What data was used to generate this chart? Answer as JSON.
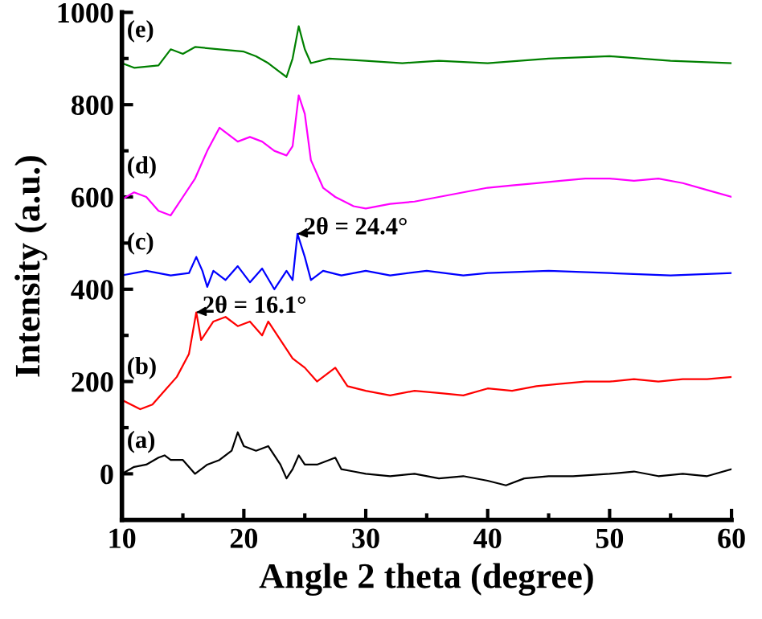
{
  "chart_data": {
    "type": "line",
    "xlabel": "Angle 2 theta (degree)",
    "ylabel": "Intensity (a.u.)",
    "xlim": [
      10,
      60
    ],
    "xticks": [
      10,
      20,
      30,
      40,
      50,
      60
    ],
    "ylim": [
      -100,
      1000
    ],
    "yticks": [
      0,
      200,
      400,
      600,
      800,
      1000
    ],
    "series": [
      {
        "name": "(a)",
        "color": "#000000",
        "x": [
          10,
          11,
          12,
          13,
          13.5,
          14,
          15,
          16,
          17,
          18,
          19,
          19.5,
          20,
          21,
          22,
          22.5,
          23,
          23.5,
          24,
          24.5,
          25,
          26,
          27,
          27.5,
          28,
          29,
          30,
          32,
          34,
          36,
          38,
          40,
          41.5,
          43,
          45,
          47,
          50,
          52,
          54,
          56,
          58,
          60
        ],
        "values": [
          0,
          15,
          20,
          35,
          40,
          30,
          30,
          0,
          20,
          30,
          50,
          90,
          60,
          50,
          60,
          40,
          20,
          -10,
          10,
          40,
          20,
          20,
          30,
          35,
          10,
          5,
          0,
          -5,
          0,
          -10,
          -5,
          -15,
          -25,
          -10,
          -5,
          -5,
          0,
          5,
          -5,
          0,
          -5,
          10
        ]
      },
      {
        "name": "(b)",
        "color": "#ff0000",
        "x": [
          10,
          11.5,
          12.5,
          13.5,
          14.5,
          15.5,
          16.1,
          16.5,
          17.5,
          18.5,
          19.5,
          20.5,
          21.5,
          22,
          23,
          24,
          25,
          26,
          27.5,
          28.5,
          30,
          32,
          34,
          36,
          38,
          40,
          42,
          44,
          46,
          48,
          50,
          52,
          54,
          56,
          58,
          60
        ],
        "values": [
          160,
          140,
          150,
          180,
          210,
          260,
          350,
          290,
          330,
          340,
          320,
          330,
          300,
          330,
          290,
          250,
          230,
          200,
          230,
          190,
          180,
          170,
          180,
          175,
          170,
          185,
          180,
          190,
          195,
          200,
          200,
          205,
          200,
          205,
          205,
          210
        ]
      },
      {
        "name": "(c)",
        "color": "#0000ff",
        "x": [
          10,
          12,
          14,
          15.5,
          16.1,
          16.6,
          17,
          17.5,
          18.5,
          19.5,
          20.5,
          21.5,
          22.5,
          23.5,
          24,
          24.4,
          25,
          25.5,
          26.5,
          28,
          30,
          32,
          35,
          38,
          40,
          45,
          50,
          55,
          60
        ],
        "values": [
          430,
          440,
          430,
          435,
          470,
          440,
          405,
          440,
          420,
          450,
          415,
          445,
          400,
          440,
          420,
          520,
          470,
          420,
          440,
          430,
          440,
          430,
          440,
          430,
          435,
          440,
          435,
          430,
          435
        ]
      },
      {
        "name": "(d)",
        "color": "#ff00ff",
        "x": [
          10,
          11,
          12,
          13,
          14,
          15,
          16,
          17,
          18,
          18.5,
          19.5,
          20.5,
          21.5,
          22.5,
          23.5,
          24,
          24.5,
          25,
          25.5,
          26.5,
          27.5,
          29,
          30,
          32,
          34,
          36,
          38,
          40,
          42,
          44,
          46,
          48,
          50,
          52,
          54,
          56,
          58,
          60
        ],
        "values": [
          595,
          610,
          600,
          570,
          560,
          600,
          640,
          700,
          750,
          740,
          720,
          730,
          720,
          700,
          690,
          710,
          820,
          780,
          680,
          620,
          600,
          580,
          575,
          585,
          590,
          600,
          610,
          620,
          625,
          630,
          635,
          640,
          640,
          635,
          640,
          630,
          615,
          600
        ]
      },
      {
        "name": "(e)",
        "color": "#008000",
        "x": [
          10,
          11,
          13,
          14,
          15,
          16,
          18,
          20,
          21,
          22,
          23,
          23.5,
          24,
          24.5,
          25,
          25.5,
          27,
          30,
          33,
          36,
          40,
          45,
          50,
          55,
          60
        ],
        "values": [
          890,
          880,
          885,
          920,
          910,
          925,
          920,
          915,
          905,
          890,
          870,
          860,
          900,
          970,
          920,
          890,
          900,
          895,
          890,
          895,
          890,
          900,
          905,
          895,
          890
        ]
      }
    ],
    "annotations": [
      {
        "text": "2θ = 24.4°",
        "x": 24.4,
        "y": 520
      },
      {
        "text": "2θ = 16.1°",
        "x": 16.1,
        "y": 350
      }
    ],
    "grid": false,
    "legend": false
  }
}
